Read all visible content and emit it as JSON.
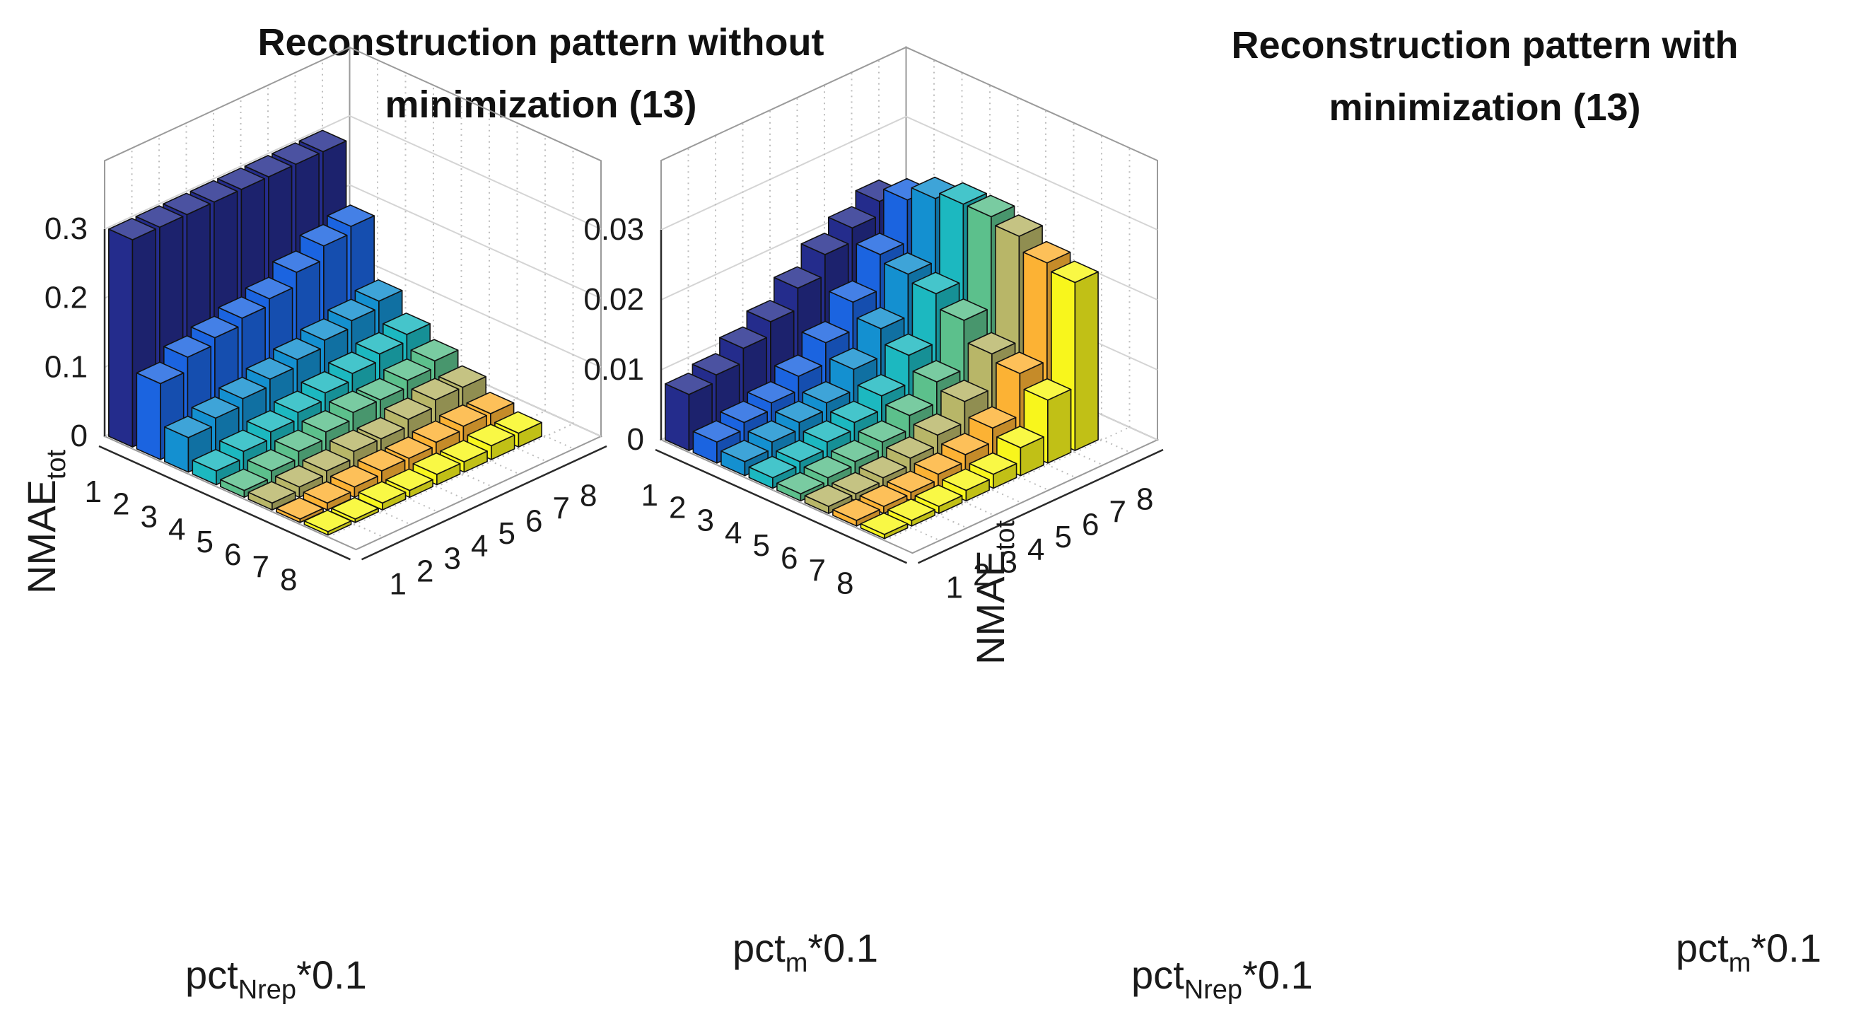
{
  "chart_data": [
    {
      "type": "bar3",
      "title_lines": [
        "Reconstruction pattern without",
        "minimization (13)"
      ],
      "zlabel_main": "NMAE",
      "zlabel_sub": "tot",
      "xlabel_main": "pct",
      "xlabel_sub": "Nrep",
      "xlabel_tail": "*0.1",
      "ylabel_main": "pct",
      "ylabel_sub": "m",
      "ylabel_tail": "*0.1",
      "x_ticks": [
        "1",
        "2",
        "3",
        "4",
        "5",
        "6",
        "7",
        "8"
      ],
      "y_ticks": [
        "1",
        "2",
        "3",
        "4",
        "5",
        "6",
        "7",
        "8"
      ],
      "z_ticks": [
        "0",
        "0.1",
        "0.2",
        "0.3"
      ],
      "zlim": [
        0,
        0.3
      ],
      "rows": [
        [
          0.3,
          0.3,
          0.3,
          0.3,
          0.3,
          0.3,
          0.3,
          0.3
        ],
        [
          0.11,
          0.13,
          0.14,
          0.15,
          0.16,
          0.18,
          0.2,
          0.21
        ],
        [
          0.05,
          0.06,
          0.07,
          0.08,
          0.09,
          0.1,
          0.11,
          0.12
        ],
        [
          0.02,
          0.03,
          0.04,
          0.05,
          0.06,
          0.07,
          0.08,
          0.09
        ],
        [
          0.01,
          0.02,
          0.03,
          0.04,
          0.05,
          0.05,
          0.06,
          0.07
        ],
        [
          0.01,
          0.015,
          0.02,
          0.03,
          0.03,
          0.04,
          0.05,
          0.05
        ],
        [
          0.005,
          0.01,
          0.015,
          0.02,
          0.02,
          0.025,
          0.03,
          0.03
        ],
        [
          0.005,
          0.005,
          0.01,
          0.01,
          0.015,
          0.015,
          0.02,
          0.02
        ]
      ]
    },
    {
      "type": "bar3",
      "title_lines": [
        "Reconstruction pattern with",
        "minimization (13)"
      ],
      "zlabel_main": "NMAE",
      "zlabel_sub": "tot",
      "xlabel_main": "pct",
      "xlabel_sub": "Nrep",
      "xlabel_tail": "*0.1",
      "ylabel_main": "pct",
      "ylabel_sub": "m",
      "ylabel_tail": "*0.1",
      "x_ticks": [
        "1",
        "2",
        "3",
        "4",
        "5",
        "6",
        "7",
        "8"
      ],
      "y_ticks": [
        "1",
        "2",
        "3",
        "4",
        "5",
        "6",
        "7",
        "8"
      ],
      "z_ticks": [
        "0",
        "0.01",
        "0.02",
        "0.03"
      ],
      "zlim": [
        0,
        0.03
      ],
      "rows": [
        [
          0.008,
          0.009,
          0.011,
          0.013,
          0.016,
          0.019,
          0.021,
          0.023
        ],
        [
          0.003,
          0.004,
          0.005,
          0.007,
          0.01,
          0.014,
          0.019,
          0.025
        ],
        [
          0.002,
          0.003,
          0.004,
          0.005,
          0.008,
          0.012,
          0.018,
          0.027
        ],
        [
          0.0015,
          0.002,
          0.003,
          0.004,
          0.006,
          0.01,
          0.017,
          0.028
        ],
        [
          0.001,
          0.0015,
          0.002,
          0.003,
          0.005,
          0.008,
          0.015,
          0.028
        ],
        [
          0.001,
          0.001,
          0.0015,
          0.0025,
          0.004,
          0.007,
          0.012,
          0.027
        ],
        [
          0.0008,
          0.001,
          0.0012,
          0.002,
          0.003,
          0.005,
          0.011,
          0.025
        ],
        [
          0.0006,
          0.0008,
          0.001,
          0.0015,
          0.002,
          0.004,
          0.009,
          0.024
        ]
      ]
    }
  ],
  "palette": [
    "#242c8c",
    "#1b64e0",
    "#1490d0",
    "#1cb8c0",
    "#5cc08c",
    "#b8b668",
    "#fcb234",
    "#f8f61c"
  ]
}
